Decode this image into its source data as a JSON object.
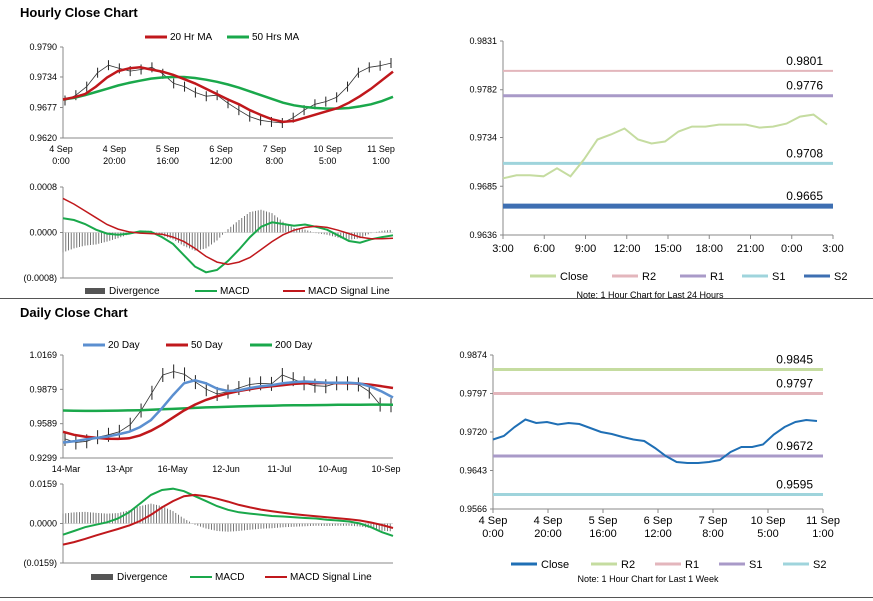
{
  "sections": {
    "hourly_title": "Hourly Close Chart",
    "daily_title": "Daily Close Chart"
  },
  "colors": {
    "ma_short": "#c0181c",
    "ma_mid": "#1aa84b",
    "ma_blue": "#5b8fd0",
    "close_light": "#c5dca0",
    "close_dark": "#1f6fb5",
    "r2": "#e3b6bc",
    "r1": "#a99ac8",
    "s1": "#9fd4dc",
    "s2": "#3e6fb2",
    "r2_daily": "#c5dca0",
    "r1_daily": "#e3b6bc",
    "s1_daily": "#a99ac8",
    "s2_daily": "#9fd4dc",
    "axis": "#888888",
    "divergence": "#777777"
  },
  "chart_data": [
    {
      "id": "hourly_price",
      "type": "line",
      "legend": [
        "20 Hr MA",
        "50 Hrs MA"
      ],
      "y_ticks": [
        "0.9790",
        "0.9734",
        "0.9677",
        "0.9620"
      ],
      "ylim": [
        0.962,
        0.979
      ],
      "x_ticks": [
        [
          "4 Sep",
          "0:00"
        ],
        [
          "4 Sep",
          "20:00"
        ],
        [
          "5 Sep",
          "16:00"
        ],
        [
          "6 Sep",
          "12:00"
        ],
        [
          "7 Sep",
          "8:00"
        ],
        [
          "10 Sep",
          "5:00"
        ],
        [
          "11 Sep",
          "1:00"
        ]
      ],
      "price": [
        0.969,
        0.97,
        0.9716,
        0.9742,
        0.9756,
        0.975,
        0.9745,
        0.9748,
        0.9752,
        0.974,
        0.9722,
        0.9716,
        0.9705,
        0.9698,
        0.97,
        0.9685,
        0.9672,
        0.966,
        0.9653,
        0.965,
        0.9648,
        0.9658,
        0.9672,
        0.9683,
        0.9688,
        0.9696,
        0.9716,
        0.9742,
        0.9752,
        0.9755,
        0.976
      ],
      "series": [
        {
          "name": "20 Hr MA",
          "values": [
            0.9692,
            0.9696,
            0.9702,
            0.9716,
            0.9733,
            0.9745,
            0.975,
            0.9752,
            0.9748,
            0.9744,
            0.9738,
            0.973,
            0.9722,
            0.9712,
            0.9702,
            0.9692,
            0.9683,
            0.9672,
            0.9663,
            0.9655,
            0.965,
            0.9652,
            0.9658,
            0.9664,
            0.967,
            0.9676,
            0.9686,
            0.9698,
            0.9712,
            0.9728,
            0.9744
          ]
        },
        {
          "name": "50 Hrs MA",
          "values": [
            0.9692,
            0.9695,
            0.97,
            0.9706,
            0.9712,
            0.9718,
            0.9723,
            0.9727,
            0.9731,
            0.9733,
            0.9734,
            0.9734,
            0.9732,
            0.9729,
            0.9725,
            0.972,
            0.9714,
            0.9707,
            0.97,
            0.9693,
            0.9686,
            0.9681,
            0.9678,
            0.9676,
            0.9675,
            0.9675,
            0.9676,
            0.9679,
            0.9683,
            0.9689,
            0.9697
          ]
        }
      ]
    },
    {
      "id": "hourly_macd",
      "type": "line",
      "legend": [
        "Divergence",
        "MACD",
        "MACD Signal Line"
      ],
      "y_ticks": [
        "0.0008",
        "0.0000",
        "(0.0008)"
      ],
      "ylim": [
        -0.0008,
        0.0008
      ],
      "series": [
        {
          "name": "MACD",
          "values": [
            0.00025,
            0.00022,
            0.00015,
            5e-05,
            -2e-05,
            -4e-05,
            -2e-05,
            2e-05,
            1e-05,
            -8e-05,
            -0.0002,
            -0.0004,
            -0.0006,
            -0.0007,
            -0.00066,
            -0.0005,
            -0.0003,
            -8e-05,
            0.0001,
            0.00018,
            0.00015,
            0.00012,
            0.00014,
            0.0001,
            5e-05,
            -5e-05,
            -0.00015,
            -0.00018,
            -0.00012,
            -8e-05,
            -5e-05
          ]
        },
        {
          "name": "MACD Signal Line",
          "values": [
            0.0006,
            0.0005,
            0.00038,
            0.00026,
            0.00014,
            6e-05,
            1e-05,
            -1e-05,
            -2e-05,
            -3e-05,
            -8e-05,
            -0.00016,
            -0.00028,
            -0.00042,
            -0.00052,
            -0.00056,
            -0.00052,
            -0.00044,
            -0.0003,
            -0.00016,
            -4e-05,
            4e-05,
            9e-05,
            0.00011,
            9e-05,
            4e-05,
            -2e-05,
            -8e-05,
            -0.00011,
            -0.00011,
            -0.0001
          ]
        }
      ]
    },
    {
      "id": "hourly_levels",
      "type": "line",
      "y_ticks": [
        "0.9831",
        "0.9782",
        "0.9734",
        "0.9685",
        "0.9636"
      ],
      "ylim": [
        0.9636,
        0.9831
      ],
      "x_ticks": [
        "3:00",
        "6:00",
        "9:00",
        "12:00",
        "15:00",
        "18:00",
        "21:00",
        "0:00",
        "3:00"
      ],
      "legend": [
        "Close",
        "R2",
        "R1",
        "S1",
        "S2"
      ],
      "levels": {
        "R2": 0.9801,
        "R1": 0.9776,
        "S1": 0.9708,
        "S2": 0.9665
      },
      "level_labels": {
        "R2": "0.9801",
        "R1": "0.9776",
        "S1": "0.9708",
        "S2": "0.9665"
      },
      "series": [
        {
          "name": "Close",
          "values": [
            0.9693,
            0.9696,
            0.9696,
            0.9695,
            0.9703,
            0.9695,
            0.9712,
            0.9732,
            0.9737,
            0.9743,
            0.9732,
            0.9728,
            0.973,
            0.974,
            0.9745,
            0.9745,
            0.9747,
            0.9747,
            0.9747,
            0.9744,
            0.9745,
            0.9748,
            0.9755,
            0.9757,
            0.9747
          ]
        }
      ],
      "note": "Note: 1 Hour Chart for Last 24 Hours"
    },
    {
      "id": "daily_price",
      "type": "line",
      "legend": [
        "20 Day",
        "50 Day",
        "200 Day"
      ],
      "y_ticks": [
        "1.0169",
        "0.9879",
        "0.9589",
        "0.9299"
      ],
      "ylim": [
        0.9299,
        1.0169
      ],
      "x_ticks": [
        "14-Mar",
        "13-Apr",
        "16-May",
        "12-Jun",
        "11-Jul",
        "10-Aug",
        "10-Sep"
      ],
      "price": [
        0.946,
        0.943,
        0.944,
        0.9475,
        0.9495,
        0.952,
        0.958,
        0.97,
        0.985,
        1.0,
        1.003,
        1.0005,
        0.994,
        0.988,
        0.984,
        0.986,
        0.989,
        0.992,
        0.993,
        0.9925,
        1.0,
        0.9965,
        0.993,
        0.991,
        0.9905,
        0.993,
        0.993,
        0.992,
        0.986,
        0.975,
        0.9745
      ],
      "series": [
        {
          "name": "20 Day",
          "values": [
            0.943,
            0.944,
            0.9455,
            0.9468,
            0.948,
            0.9498,
            0.952,
            0.956,
            0.962,
            0.972,
            0.983,
            0.993,
            0.9955,
            0.993,
            0.9885,
            0.9865,
            0.987,
            0.989,
            0.9905,
            0.9915,
            0.993,
            0.994,
            0.9945,
            0.994,
            0.9935,
            0.9935,
            0.9935,
            0.9928,
            0.99,
            0.986,
            0.981
          ]
        },
        {
          "name": "50 Day",
          "values": [
            0.952,
            0.9495,
            0.948,
            0.947,
            0.9462,
            0.946,
            0.9465,
            0.949,
            0.953,
            0.958,
            0.964,
            0.97,
            0.975,
            0.979,
            0.982,
            0.9845,
            0.9865,
            0.988,
            0.9895,
            0.9905,
            0.9915,
            0.9925,
            0.993,
            0.9932,
            0.9933,
            0.9932,
            0.993,
            0.9926,
            0.9918,
            0.9905,
            0.989
          ]
        },
        {
          "name": "200 Day",
          "values": [
            0.97,
            0.9698,
            0.9697,
            0.9697,
            0.9698,
            0.9699,
            0.9701,
            0.9703,
            0.9706,
            0.971,
            0.9714,
            0.9718,
            0.9722,
            0.9726,
            0.9729,
            0.9732,
            0.9735,
            0.9737,
            0.9739,
            0.9741,
            0.9743,
            0.9744,
            0.9745,
            0.9746,
            0.9747,
            0.9748,
            0.9748,
            0.9749,
            0.975,
            0.975,
            0.9749
          ]
        }
      ]
    },
    {
      "id": "daily_macd",
      "type": "line",
      "legend": [
        "Divergence",
        "MACD",
        "MACD Signal Line"
      ],
      "y_ticks": [
        "0.0159",
        "0.0000",
        "(0.0159)"
      ],
      "ylim": [
        -0.0159,
        0.0159
      ],
      "series": [
        {
          "name": "MACD",
          "values": [
            -0.0045,
            -0.003,
            -0.0015,
            -0.0005,
            0.0005,
            0.002,
            0.0045,
            0.008,
            0.0115,
            0.0135,
            0.014,
            0.013,
            0.011,
            0.009,
            0.007,
            0.0055,
            0.0045,
            0.004,
            0.0035,
            0.003,
            0.0028,
            0.0025,
            0.0022,
            0.002,
            0.0015,
            0.0012,
            0.0008,
            0.0,
            -0.0015,
            -0.0035,
            -0.005
          ]
        },
        {
          "name": "MACD Signal Line",
          "values": [
            -0.0085,
            -0.0075,
            -0.0062,
            -0.0048,
            -0.0035,
            -0.0022,
            -0.0008,
            0.001,
            0.0035,
            0.0065,
            0.009,
            0.011,
            0.0115,
            0.011,
            0.01,
            0.0088,
            0.0075,
            0.0065,
            0.0056,
            0.0049,
            0.0043,
            0.0038,
            0.0033,
            0.0029,
            0.0025,
            0.0021,
            0.0017,
            0.0012,
            0.0004,
            -0.0006,
            -0.0018
          ]
        }
      ]
    },
    {
      "id": "daily_levels",
      "type": "line",
      "y_ticks": [
        "0.9874",
        "0.9797",
        "0.9720",
        "0.9643",
        "0.9566"
      ],
      "ylim": [
        0.9566,
        0.9874
      ],
      "x_ticks": [
        [
          "4 Sep",
          "0:00"
        ],
        [
          "4 Sep",
          "20:00"
        ],
        [
          "5 Sep",
          "16:00"
        ],
        [
          "6 Sep",
          "12:00"
        ],
        [
          "7 Sep",
          "8:00"
        ],
        [
          "10 Sep",
          "5:00"
        ],
        [
          "11 Sep",
          "1:00"
        ]
      ],
      "legend": [
        "Close",
        "R2",
        "R1",
        "S1",
        "S2"
      ],
      "levels": {
        "R2": 0.9845,
        "R1": 0.9797,
        "S1": 0.9672,
        "S2": 0.9595
      },
      "level_labels": {
        "R2": "0.9845",
        "R1": "0.9797",
        "S1": "0.9672",
        "S2": "0.9595"
      },
      "series": [
        {
          "name": "Close",
          "values": [
            0.9705,
            0.9712,
            0.973,
            0.9745,
            0.9738,
            0.974,
            0.9735,
            0.9738,
            0.9736,
            0.9728,
            0.972,
            0.9716,
            0.971,
            0.9705,
            0.9702,
            0.9688,
            0.9672,
            0.966,
            0.9658,
            0.9658,
            0.966,
            0.9664,
            0.968,
            0.969,
            0.969,
            0.9695,
            0.9715,
            0.973,
            0.974,
            0.9744,
            0.9742
          ]
        }
      ],
      "note": "Note: 1 Hour Chart for Last 1 Week"
    }
  ]
}
